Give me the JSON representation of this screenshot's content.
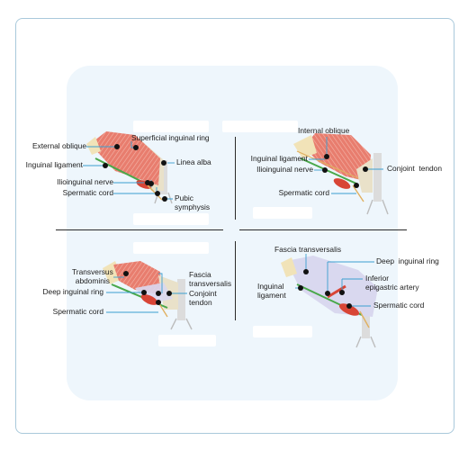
{
  "colors": {
    "frame_border": "#a9c9db",
    "panel_background": "#eef6fc",
    "muscle": "#e87d6e",
    "muscle_light": "#f3b3a6",
    "fascia": "#d9d8ef",
    "nerve": "#49a84a",
    "spermatic_cord": "#d84536",
    "tendon": "#e9e1c9",
    "bone": "#dcdcdc",
    "leader_line": "#3a9fd0",
    "marker": "#111111"
  },
  "panels": {
    "top_left": {
      "labels": {
        "external_oblique": "External oblique",
        "superficial_inguinal_ring": "Superficial inguinal ring",
        "inguinal_ligament": "Inguinal ligament",
        "linea_alba": "Linea alba",
        "ilioinguinal_nerve": "Ilioinguinal nerve",
        "spermatic_cord": "Spermatic cord",
        "pubic_symphysis": "Pubic\nsymphysis"
      }
    },
    "top_right": {
      "labels": {
        "internal_oblique": "Internal oblique",
        "inguinal_ligament": "Inguinal ligament",
        "ilioinguinal_nerve": "Ilioinguinal nerve",
        "conjoint_tendon": "Conjoint  tendon",
        "spermatic_cord": "Spermatic cord"
      }
    },
    "bottom_left": {
      "labels": {
        "transversus_abdominis": "Transversus\nabdominis",
        "fascia_transversalis": "Fascia\ntransversalis",
        "deep_inguinal_ring": "Deep inguinal ring",
        "conjoint_tendon": "Conjoint\ntendon",
        "spermatic_cord": "Spermatic cord"
      }
    },
    "bottom_right": {
      "labels": {
        "fascia_transversalis": "Fascia transversalis",
        "deep_inguinal_ring": "Deep  inguinal ring",
        "inguinal_ligament": "Inguinal\nligament",
        "inferior_epigastric_artery": "Inferior\nepigastric artery",
        "spermatic_cord": "Spermatic cord"
      }
    }
  }
}
